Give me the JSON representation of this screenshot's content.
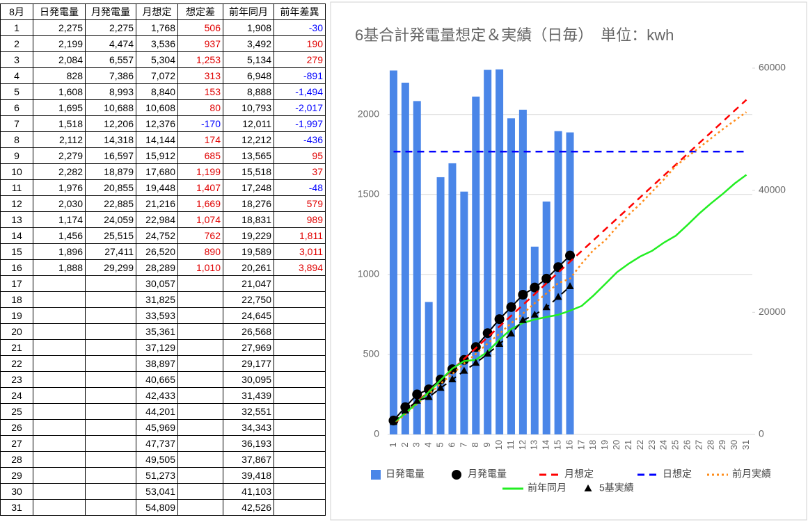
{
  "table": {
    "header": [
      "8月",
      "日発電量",
      "月発電量",
      "月想定",
      "想定差",
      "前年同月",
      "前年差異"
    ],
    "rows": [
      [
        "1",
        "2,275",
        "2,275",
        "1,768",
        "506",
        "1,908",
        "-30"
      ],
      [
        "2",
        "2,199",
        "4,474",
        "3,536",
        "937",
        "3,492",
        "190"
      ],
      [
        "3",
        "2,084",
        "6,557",
        "5,304",
        "1,253",
        "5,134",
        "279"
      ],
      [
        "4",
        "828",
        "7,386",
        "7,072",
        "313",
        "6,948",
        "-891"
      ],
      [
        "5",
        "1,608",
        "8,993",
        "8,840",
        "153",
        "8,888",
        "-1,494"
      ],
      [
        "6",
        "1,695",
        "10,688",
        "10,608",
        "80",
        "10,793",
        "-2,017"
      ],
      [
        "7",
        "1,518",
        "12,206",
        "12,376",
        "-170",
        "12,011",
        "-1,997"
      ],
      [
        "8",
        "2,112",
        "14,318",
        "14,144",
        "174",
        "12,212",
        "-436"
      ],
      [
        "9",
        "2,279",
        "16,597",
        "15,912",
        "685",
        "13,565",
        "95"
      ],
      [
        "10",
        "2,282",
        "18,879",
        "17,680",
        "1,199",
        "15,518",
        "37"
      ],
      [
        "11",
        "1,976",
        "20,855",
        "19,448",
        "1,407",
        "17,248",
        "-48"
      ],
      [
        "12",
        "2,030",
        "22,885",
        "21,216",
        "1,669",
        "18,276",
        "579"
      ],
      [
        "13",
        "1,174",
        "24,059",
        "22,984",
        "1,074",
        "18,831",
        "989"
      ],
      [
        "14",
        "1,456",
        "25,515",
        "24,752",
        "762",
        "19,229",
        "1,811"
      ],
      [
        "15",
        "1,896",
        "27,411",
        "26,520",
        "890",
        "19,589",
        "3,011"
      ],
      [
        "16",
        "1,888",
        "29,299",
        "28,289",
        "1,010",
        "20,261",
        "3,894"
      ],
      [
        "17",
        null,
        null,
        "30,057",
        null,
        "21,047",
        null
      ],
      [
        "18",
        null,
        null,
        "31,825",
        null,
        "22,750",
        null
      ],
      [
        "19",
        null,
        null,
        "33,593",
        null,
        "24,645",
        null
      ],
      [
        "20",
        null,
        null,
        "35,361",
        null,
        "26,568",
        null
      ],
      [
        "21",
        null,
        null,
        "37,129",
        null,
        "27,969",
        null
      ],
      [
        "22",
        null,
        null,
        "38,897",
        null,
        "29,177",
        null
      ],
      [
        "23",
        null,
        null,
        "40,665",
        null,
        "30,095",
        null
      ],
      [
        "24",
        null,
        null,
        "42,433",
        null,
        "31,439",
        null
      ],
      [
        "25",
        null,
        null,
        "44,201",
        null,
        "32,551",
        null
      ],
      [
        "26",
        null,
        null,
        "45,969",
        null,
        "34,343",
        null
      ],
      [
        "27",
        null,
        null,
        "47,737",
        null,
        "36,193",
        null
      ],
      [
        "28",
        null,
        null,
        "49,505",
        null,
        "37,867",
        null
      ],
      [
        "29",
        null,
        null,
        "51,273",
        null,
        "39,418",
        null
      ],
      [
        "30",
        null,
        null,
        "53,041",
        null,
        "41,103",
        null
      ],
      [
        "31",
        null,
        null,
        "54,809",
        null,
        "42,526",
        null
      ]
    ]
  },
  "chart_data": {
    "type": "combo",
    "title": "6基合計発電量想定＆実績（日毎）　単位：kwh",
    "categories": [
      "1",
      "2",
      "3",
      "4",
      "5",
      "6",
      "7",
      "8",
      "9",
      "10",
      "11",
      "12",
      "13",
      "14",
      "15",
      "16",
      "17",
      "18",
      "19",
      "20",
      "21",
      "22",
      "23",
      "24",
      "25",
      "26",
      "27",
      "28",
      "29",
      "30",
      "31"
    ],
    "ylim": [
      0,
      2290
    ],
    "yticks": [
      0,
      500,
      1000,
      1500,
      2000
    ],
    "y2lim": [
      0,
      60000
    ],
    "y2ticks": [
      0,
      20000,
      40000,
      60000
    ],
    "grid": true,
    "legend": "bottom",
    "series": [
      {
        "name": "日発電量",
        "type": "bar",
        "color": "#4a86e8",
        "axis": "y",
        "values": [
          2275,
          2199,
          2084,
          828,
          1608,
          1695,
          1518,
          2112,
          2279,
          2282,
          1976,
          2030,
          1174,
          1456,
          1896,
          1888,
          null,
          null,
          null,
          null,
          null,
          null,
          null,
          null,
          null,
          null,
          null,
          null,
          null,
          null,
          null
        ]
      },
      {
        "name": "月発電量",
        "type": "line",
        "color": "#000000",
        "axis": "y2",
        "style": "solid",
        "marker": "circle",
        "values": [
          2275,
          4474,
          6557,
          7386,
          8993,
          10688,
          12206,
          14318,
          16597,
          18879,
          20855,
          22885,
          24059,
          25515,
          27411,
          29299,
          null,
          null,
          null,
          null,
          null,
          null,
          null,
          null,
          null,
          null,
          null,
          null,
          null,
          null,
          null
        ]
      },
      {
        "name": "月想定",
        "type": "line",
        "color": "#ff0000",
        "axis": "y2",
        "style": "dashed",
        "values": [
          1768,
          3536,
          5304,
          7072,
          8840,
          10608,
          12376,
          14144,
          15912,
          17680,
          19448,
          21216,
          22984,
          24752,
          26520,
          28289,
          30057,
          31825,
          33593,
          35361,
          37129,
          38897,
          40665,
          42433,
          44201,
          45969,
          47737,
          49505,
          51273,
          53041,
          54809
        ]
      },
      {
        "name": "日想定",
        "type": "line",
        "color": "#0000ff",
        "axis": "y",
        "style": "dashed",
        "values": [
          1768,
          1768,
          1768,
          1768,
          1768,
          1768,
          1768,
          1768,
          1768,
          1768,
          1768,
          1768,
          1768,
          1768,
          1768,
          1768,
          1768,
          1768,
          1768,
          1768,
          1768,
          1768,
          1768,
          1768,
          1768,
          1768,
          1768,
          1768,
          1768,
          1768,
          1768
        ]
      },
      {
        "name": "前月実績",
        "type": "line",
        "color": "#ff8c1a",
        "axis": "y2",
        "style": "dotted",
        "values": [
          1650,
          3300,
          5000,
          6600,
          8300,
          9900,
          11600,
          13200,
          14900,
          16500,
          18200,
          19800,
          21500,
          23100,
          24800,
          25500,
          28000,
          30200,
          31800,
          34000,
          36000,
          37800,
          39800,
          41800,
          44000,
          45500,
          47000,
          48500,
          50000,
          51400,
          52800
        ]
      },
      {
        "name": "前年同月",
        "type": "line",
        "color": "#22ee22",
        "axis": "y2",
        "style": "solid",
        "values": [
          1908,
          3492,
          5134,
          6948,
          8888,
          10793,
          12011,
          12212,
          13565,
          15518,
          17248,
          18276,
          18831,
          19229,
          19589,
          20261,
          21047,
          22750,
          24645,
          26568,
          27969,
          29177,
          30095,
          31439,
          32551,
          34343,
          36193,
          37867,
          39418,
          41103,
          42526
        ]
      },
      {
        "name": "5基実績",
        "type": "line",
        "color": "#000000",
        "axis": "y2",
        "style": "dashed",
        "marker": "triangle",
        "values": [
          2000,
          3900,
          5500,
          6100,
          7600,
          9000,
          10400,
          11700,
          13200,
          14800,
          16500,
          18700,
          19600,
          20800,
          22500,
          24250,
          null,
          null,
          null,
          null,
          null,
          null,
          null,
          null,
          null,
          null,
          null,
          null,
          null,
          null,
          null
        ]
      }
    ]
  }
}
